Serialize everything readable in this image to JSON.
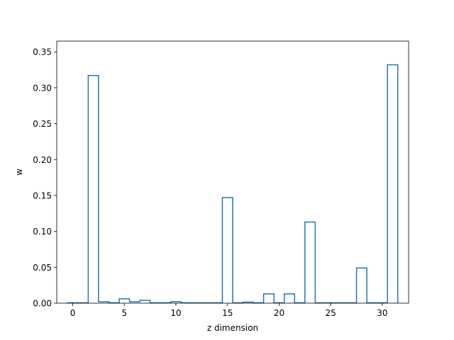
{
  "chart_data": {
    "type": "bar",
    "style": "step-histogram",
    "color": "#1f77b4",
    "xlabel": "z dimension",
    "ylabel": "w",
    "xlim": [
      -1.55,
      32.55
    ],
    "ylim": [
      0,
      0.365
    ],
    "grid": false,
    "legend": "none",
    "x_ticks": [
      0,
      5,
      10,
      15,
      20,
      25,
      30
    ],
    "y_ticks": [
      0.0,
      0.05,
      0.1,
      0.15,
      0.2,
      0.25,
      0.3,
      0.35
    ],
    "x_tick_labels": [
      "0",
      "5",
      "10",
      "15",
      "20",
      "25",
      "30"
    ],
    "y_tick_labels": [
      "0.00",
      "0.05",
      "0.10",
      "0.15",
      "0.20",
      "0.25",
      "0.30",
      "0.35"
    ],
    "categories": [
      0,
      1,
      2,
      3,
      4,
      5,
      6,
      7,
      8,
      9,
      10,
      11,
      12,
      13,
      14,
      15,
      16,
      17,
      18,
      19,
      20,
      21,
      22,
      23,
      24,
      25,
      26,
      27,
      28,
      29,
      30,
      31
    ],
    "values": [
      0.0005,
      0.0005,
      0.317,
      0.002,
      0.0005,
      0.006,
      0.002,
      0.004,
      0.0005,
      0.0005,
      0.002,
      0.0005,
      0.0005,
      0.0005,
      0.0005,
      0.147,
      0.0005,
      0.0015,
      0.0005,
      0.013,
      0.0005,
      0.013,
      0.0005,
      0.113,
      0.0005,
      0.0005,
      0.0005,
      0.0005,
      0.049,
      0.0005,
      0.0005,
      0.332
    ]
  }
}
